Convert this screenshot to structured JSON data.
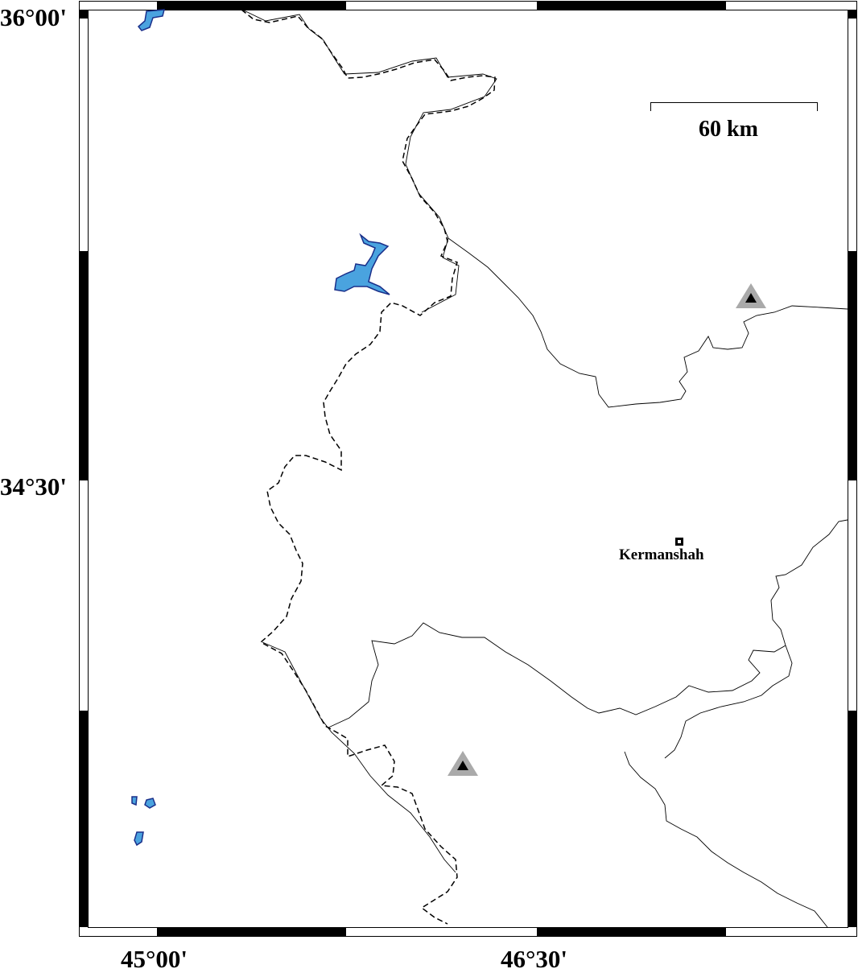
{
  "map": {
    "lat_labels": [
      "36°00'",
      "34°30'"
    ],
    "lon_labels": [
      "45°00'",
      "46°30'"
    ],
    "scale_bar": {
      "label": "60 km"
    },
    "cities": [
      {
        "name": "Kermanshah",
        "marker": "square"
      }
    ],
    "stations": [
      {
        "marker": "triangle"
      },
      {
        "marker": "triangle"
      }
    ],
    "colors": {
      "water": "#4aa3df",
      "water_outline": "#1a2f8a",
      "station_halo": "#aaaaaa",
      "station": "#000000"
    },
    "line_styles": {
      "international_border": "dashed",
      "province_border": "solid"
    }
  }
}
